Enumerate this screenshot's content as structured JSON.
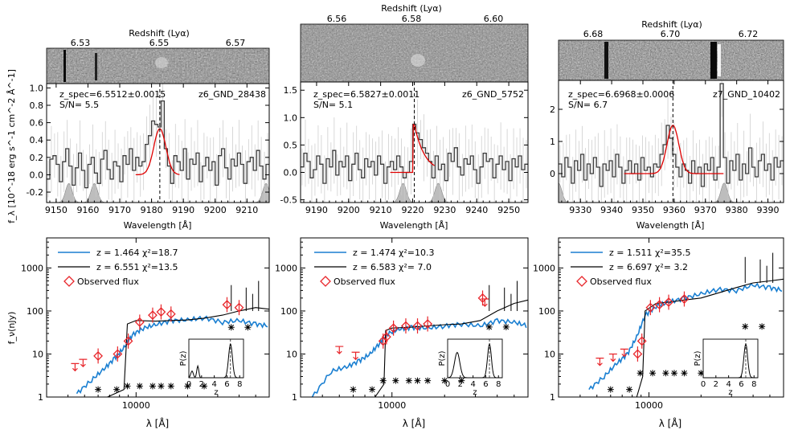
{
  "figure": {
    "ylabel_top": "f_λ [10^-18 erg s^-1 cm^-2 Å^-1]",
    "ylabel_bottom": "f_ν(nJy)",
    "xlabel_bottom": "λ [Å]"
  },
  "chart_data": [
    {
      "type": "line",
      "panel": "spectrum-1",
      "redshift_label": "Redshift (Lyα)",
      "redshift_ticks": [
        "6.53",
        "6.55",
        "6.57"
      ],
      "object": "z6_GND_28438",
      "zspec": "z_spec=6.5512±0.0015",
      "sn": "S/N= 5.5",
      "xlabel": "Wavelength [Å]",
      "xlim": [
        9147,
        9217
      ],
      "ylim": [
        -0.32,
        1.05
      ],
      "xticks": [
        "9150",
        "9160",
        "9170",
        "9180",
        "9190",
        "9200",
        "9210"
      ],
      "yticks": [
        "-0.2",
        "0.0",
        "0.2",
        "0.4",
        "0.6",
        "0.8",
        "1.0"
      ],
      "line_center": 9182.6,
      "gauss_amp": 0.53,
      "gauss_sigma": 1.9,
      "gauss_range": [
        9175,
        9189
      ],
      "flux": [
        -0.05,
        0.18,
        0.22,
        0.12,
        -0.08,
        0.15,
        0.3,
        0.1,
        -0.12,
        0.08,
        0.25,
        0.05,
        -0.15,
        0.12,
        0.2,
        0.02,
        -0.1,
        0.18,
        0.28,
        0.06,
        -0.05,
        0.15,
        0.1,
        -0.08,
        0.22,
        0.12,
        0.3,
        0.05,
        0.2,
        0.1,
        0.15,
        0.35,
        0.45,
        0.62,
        0.58,
        0.55,
        0.85,
        0.3,
        0.1,
        -0.1,
        0.22,
        0.15,
        0.05,
        0.3,
        -0.05,
        0.18,
        0.12,
        0.25,
        -0.08,
        0.1,
        0.2,
        0.05,
        0.15,
        -0.12,
        0.22,
        0.3,
        0.08,
        -0.05,
        0.18,
        0.1,
        0.25,
        0.12,
        -0.1,
        0.15,
        0.2,
        0.05,
        0.28,
        0.1,
        -0.05,
        0.12
      ],
      "sky_centers": [
        9154,
        9162,
        9216
      ]
    },
    {
      "type": "line",
      "panel": "spectrum-2",
      "redshift_label": "Redshift (Lyα)",
      "redshift_ticks": [
        "6.56",
        "6.58",
        "6.60"
      ],
      "object": "z6_GND_5752",
      "zspec": "z_spec=6.5827±0.0011",
      "sn": "S/N= 5.1",
      "xlabel": "Wavelength [Å]",
      "xlim": [
        9185,
        9256
      ],
      "ylim": [
        -0.55,
        1.65
      ],
      "xticks": [
        "9190",
        "9200",
        "9210",
        "9220",
        "9230",
        "9240",
        "9250"
      ],
      "yticks": [
        "-0.5",
        "0.0",
        "0.5",
        "1.0",
        "1.5"
      ],
      "line_center": 9220.5,
      "gauss_amp": 0.88,
      "gauss_sigma": 2.2,
      "gauss_range": [
        9213,
        9227
      ],
      "flux": [
        0.1,
        0.35,
        0.2,
        -0.1,
        0.05,
        0.3,
        0.15,
        -0.2,
        0.25,
        0.1,
        0.4,
        -0.05,
        0.2,
        0.1,
        0.3,
        -0.15,
        0.15,
        0.35,
        0.05,
        -0.1,
        0.25,
        0.1,
        0.2,
        -0.05,
        0.3,
        0.15,
        -0.2,
        0.1,
        0.2,
        0.05,
        0.3,
        0.1,
        -0.1,
        0.0,
        0.2,
        0.88,
        0.72,
        0.6,
        0.45,
        0.35,
        0.2,
        -0.1,
        0.3,
        0.05,
        0.15,
        -0.15,
        0.35,
        0.2,
        0.45,
        0.1,
        -0.05,
        0.25,
        0.15,
        0.3,
        0.05,
        -0.2,
        0.1,
        0.35,
        0.2,
        0.25,
        -0.1,
        0.15,
        0.3,
        0.05,
        0.2,
        -0.15,
        0.25,
        0.1,
        0.3,
        0.05,
        0.15
      ],
      "sky_centers": [
        9217,
        9228
      ]
    },
    {
      "type": "line",
      "panel": "spectrum-3",
      "redshift_label": "Redshift (Lyα)",
      "redshift_ticks": [
        "6.68",
        "6.70",
        "6.72"
      ],
      "object": "z7_GND_10402",
      "zspec": "z_spec=6.6968±0.0006",
      "sn": "S/N= 6.7",
      "xlabel": "Wavelength [Å]",
      "xlim": [
        9323,
        9395
      ],
      "ylim": [
        -0.9,
        2.9
      ],
      "xticks": [
        "9330",
        "9340",
        "9350",
        "9360",
        "9370",
        "9380",
        "9390"
      ],
      "yticks": [
        "0",
        "1",
        "2"
      ],
      "line_center": 9359.6,
      "gauss_amp": 1.5,
      "gauss_sigma": 1.9,
      "gauss_range": [
        9344,
        9376
      ],
      "flux": [
        0.3,
        -0.1,
        0.5,
        0.2,
        -0.3,
        0.4,
        0.1,
        0.6,
        -0.2,
        0.3,
        0.0,
        0.5,
        0.2,
        -0.4,
        0.3,
        0.1,
        0.4,
        -0.1,
        0.6,
        0.2,
        -0.3,
        0.1,
        0.4,
        0.0,
        0.3,
        -0.2,
        0.5,
        0.1,
        0.2,
        -0.1,
        0.3,
        0.2,
        0.6,
        0.9,
        1.5,
        1.1,
        0.6,
        0.2,
        -0.1,
        0.3,
        0.1,
        -0.3,
        0.4,
        0.0,
        0.2,
        -0.4,
        0.3,
        0.1,
        0.5,
        -0.2,
        0.2,
        2.8,
        0.5,
        -0.3,
        0.4,
        0.1,
        0.6,
        -0.2,
        0.3,
        0.0,
        0.8,
        0.2,
        -0.1,
        0.4,
        0.6,
        0.1,
        0.3,
        -0.2,
        0.5,
        0.2,
        0.4
      ],
      "sky_centers": [
        9323,
        9376
      ]
    },
    {
      "type": "line",
      "panel": "sed-1",
      "xlabel": "λ [Å]",
      "x_log_range": [
        3000,
        60000
      ],
      "y_log_range": [
        1,
        5000
      ],
      "xtick_label": "10000",
      "yticks": [
        "1",
        "10",
        "100",
        "1000"
      ],
      "legend": [
        {
          "label": "z  =  1.464   χ²=18.7",
          "color": "#1a7fd1"
        },
        {
          "label": "z  =  6.551   χ²=13.5",
          "color": "#000000"
        },
        {
          "label": "Observed flux",
          "color": "#e8262b"
        }
      ],
      "blue_model": [
        [
          4500,
          1.2
        ],
        [
          5500,
          2.5
        ],
        [
          6500,
          4.5
        ],
        [
          7500,
          8
        ],
        [
          8500,
          14
        ],
        [
          9500,
          28
        ],
        [
          11000,
          40
        ],
        [
          13000,
          48
        ],
        [
          16000,
          60
        ],
        [
          20000,
          62
        ],
        [
          25000,
          70
        ],
        [
          32000,
          55
        ],
        [
          40000,
          60
        ],
        [
          50000,
          50
        ],
        [
          60000,
          45
        ]
      ],
      "black_model": [
        [
          6800,
          1
        ],
        [
          8500,
          1.5
        ],
        [
          8900,
          50
        ],
        [
          10000,
          60
        ],
        [
          13000,
          58
        ],
        [
          16000,
          60
        ],
        [
          20000,
          62
        ],
        [
          25000,
          68
        ],
        [
          32000,
          80
        ],
        [
          40000,
          100
        ],
        [
          50000,
          120
        ],
        [
          60000,
          110
        ]
      ],
      "observed": [
        [
          6000,
          9
        ],
        [
          7800,
          10
        ],
        [
          9000,
          20
        ],
        [
          10500,
          55
        ],
        [
          12500,
          80
        ],
        [
          14000,
          95
        ],
        [
          16000,
          85
        ],
        [
          34000,
          140
        ],
        [
          40000,
          120
        ]
      ],
      "upper_limits": [
        [
          4400,
          6
        ],
        [
          4900,
          7.5
        ]
      ],
      "inset": {
        "ylabel": "P(z)",
        "xlabel": "z",
        "xticks": [
          "0",
          "2",
          "4",
          "6",
          "8"
        ],
        "peak_z": 6.55
      }
    },
    {
      "type": "line",
      "panel": "sed-2",
      "xlabel": "λ [Å]",
      "x_log_range": [
        3000,
        60000
      ],
      "y_log_range": [
        1,
        5000
      ],
      "xtick_label": "10000",
      "yticks": [
        "1",
        "10",
        "100",
        "1000"
      ],
      "legend": [
        {
          "label": "z  =  1.474   χ²=10.3",
          "color": "#1a7fd1"
        },
        {
          "label": "z  =  6.583   χ²=  7.0",
          "color": "#000000"
        },
        {
          "label": "Observed flux",
          "color": "#e8262b"
        }
      ],
      "blue_model": [
        [
          3500,
          1
        ],
        [
          4500,
          4
        ],
        [
          5500,
          5
        ],
        [
          6500,
          7
        ],
        [
          7500,
          10
        ],
        [
          8500,
          18
        ],
        [
          9500,
          30
        ],
        [
          11000,
          38
        ],
        [
          13000,
          42
        ],
        [
          16000,
          40
        ],
        [
          20000,
          45
        ],
        [
          25000,
          50
        ],
        [
          32000,
          45
        ],
        [
          40000,
          60
        ],
        [
          50000,
          55
        ],
        [
          60000,
          45
        ]
      ],
      "black_model": [
        [
          8000,
          1
        ],
        [
          9000,
          2
        ],
        [
          9200,
          35
        ],
        [
          10000,
          40
        ],
        [
          13000,
          42
        ],
        [
          16000,
          45
        ],
        [
          20000,
          48
        ],
        [
          25000,
          50
        ],
        [
          32000,
          60
        ],
        [
          40000,
          100
        ],
        [
          50000,
          150
        ],
        [
          60000,
          180
        ]
      ],
      "observed": [
        [
          8900,
          20
        ],
        [
          9300,
          25
        ],
        [
          10200,
          40
        ],
        [
          12000,
          45
        ],
        [
          14000,
          45
        ],
        [
          16000,
          50
        ],
        [
          33000,
          200
        ]
      ],
      "upper_limits": [
        [
          5000,
          15
        ],
        [
          6200,
          11
        ],
        [
          34000,
          190
        ]
      ],
      "inset": {
        "ylabel": "P(z)",
        "xlabel": "z",
        "xticks": [
          "0",
          "2",
          "4",
          "6",
          "8"
        ],
        "peak_z": 6.58
      }
    },
    {
      "type": "line",
      "panel": "sed-3",
      "xlabel": "λ [Å]",
      "x_log_range": [
        3000,
        60000
      ],
      "y_log_range": [
        1,
        5000
      ],
      "xtick_label": "10000",
      "yticks": [
        "1",
        "10",
        "100",
        "1000"
      ],
      "legend": [
        {
          "label": "z  =  1.511   χ²=35.5",
          "color": "#1a7fd1"
        },
        {
          "label": "z  =  6.697   χ²=  3.2",
          "color": "#000000"
        },
        {
          "label": "Observed flux",
          "color": "#e8262b"
        }
      ],
      "blue_model": [
        [
          4500,
          1.5
        ],
        [
          5500,
          3
        ],
        [
          6500,
          6
        ],
        [
          7500,
          10
        ],
        [
          8500,
          25
        ],
        [
          9500,
          80
        ],
        [
          11000,
          130
        ],
        [
          13000,
          160
        ],
        [
          16000,
          200
        ],
        [
          20000,
          250
        ],
        [
          25000,
          320
        ],
        [
          32000,
          300
        ],
        [
          40000,
          400
        ],
        [
          50000,
          350
        ],
        [
          60000,
          300
        ]
      ],
      "black_model": [
        [
          8500,
          1
        ],
        [
          9200,
          3
        ],
        [
          9500,
          100
        ],
        [
          11000,
          150
        ],
        [
          13000,
          160
        ],
        [
          16000,
          180
        ],
        [
          20000,
          200
        ],
        [
          25000,
          260
        ],
        [
          32000,
          350
        ],
        [
          40000,
          450
        ],
        [
          50000,
          500
        ],
        [
          60000,
          550
        ]
      ],
      "observed": [
        [
          8600,
          10
        ],
        [
          9100,
          20
        ],
        [
          10200,
          120
        ],
        [
          11500,
          140
        ],
        [
          13000,
          160
        ],
        [
          16000,
          190
        ]
      ],
      "upper_limits": [
        [
          5200,
          8
        ],
        [
          6200,
          10
        ],
        [
          7200,
          13
        ]
      ],
      "inset": {
        "ylabel": "P(z)",
        "xlabel": "z",
        "xticks": [
          "0",
          "2",
          "4",
          "6",
          "8"
        ],
        "peak_z": 6.7
      }
    }
  ]
}
